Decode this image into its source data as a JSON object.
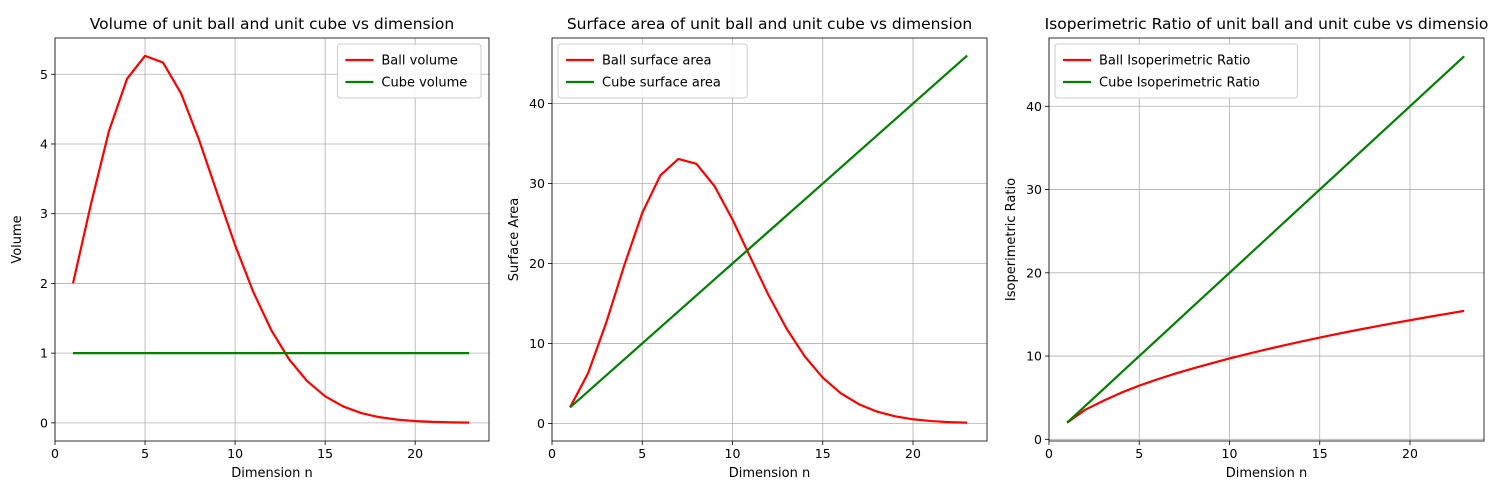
{
  "chart_data": [
    {
      "type": "line",
      "title": "Volume of unit ball and unit cube vs dimension",
      "xlabel": "Dimension n",
      "ylabel": "Volume",
      "xlim": [
        0,
        24.1
      ],
      "ylim": [
        -0.26,
        5.52
      ],
      "xticks": [
        0,
        5,
        10,
        15,
        20
      ],
      "yticks": [
        0,
        1,
        2,
        3,
        4,
        5
      ],
      "grid": true,
      "legend": "top-right",
      "x": [
        1,
        2,
        3,
        4,
        5,
        6,
        7,
        8,
        9,
        10,
        11,
        12,
        13,
        14,
        15,
        16,
        17,
        18,
        19,
        20,
        21,
        22,
        23
      ],
      "series": [
        {
          "name": "Ball volume",
          "color": "#ff0000",
          "values": [
            2.0,
            3.1416,
            4.1888,
            4.9348,
            5.2638,
            5.1677,
            4.7248,
            4.0587,
            3.2985,
            2.5502,
            1.8841,
            1.3353,
            0.9106,
            0.5993,
            0.3814,
            0.2353,
            0.141,
            0.0821,
            0.0466,
            0.0258,
            0.0139,
            0.0073,
            0.0038
          ]
        },
        {
          "name": "Cube volume",
          "color": "#008000",
          "values": [
            1,
            1,
            1,
            1,
            1,
            1,
            1,
            1,
            1,
            1,
            1,
            1,
            1,
            1,
            1,
            1,
            1,
            1,
            1,
            1,
            1,
            1,
            1
          ]
        }
      ]
    },
    {
      "type": "line",
      "title": "Surface area of unit ball and unit cube vs dimension",
      "xlabel": "Dimension n",
      "ylabel": "Surface Area",
      "xlim": [
        0,
        24.1
      ],
      "ylim": [
        -2.2,
        48.2
      ],
      "xticks": [
        0,
        5,
        10,
        15,
        20
      ],
      "yticks": [
        0,
        10,
        20,
        30,
        40
      ],
      "grid": true,
      "legend": "top-left",
      "x": [
        1,
        2,
        3,
        4,
        5,
        6,
        7,
        8,
        9,
        10,
        11,
        12,
        13,
        14,
        15,
        16,
        17,
        18,
        19,
        20,
        21,
        22,
        23
      ],
      "series": [
        {
          "name": "Ball surface area",
          "color": "#ff0000",
          "values": [
            2.0,
            6.2832,
            12.5664,
            19.7392,
            26.3189,
            31.0063,
            33.0734,
            32.4697,
            29.6866,
            25.5016,
            20.7251,
            16.0232,
            11.8382,
            8.3897,
            5.7216,
            3.7653,
            2.3967,
            1.4786,
            0.8856,
            0.5158,
            0.2925,
            0.1617,
            0.0873
          ]
        },
        {
          "name": "Cube surface area",
          "color": "#008000",
          "values": [
            2,
            4,
            6,
            8,
            10,
            12,
            14,
            16,
            18,
            20,
            22,
            24,
            26,
            28,
            30,
            32,
            34,
            36,
            38,
            40,
            42,
            44,
            46
          ]
        }
      ]
    },
    {
      "type": "line",
      "title": "Isoperimetric Ratio of unit ball and unit cube vs dimensio",
      "xlabel": "Dimension n",
      "ylabel": "Isoperimetric Ratio",
      "xlim": [
        0,
        24.1
      ],
      "ylim": [
        -0.2,
        48.2
      ],
      "xticks": [
        0,
        5,
        10,
        15,
        20
      ],
      "yticks": [
        0,
        10,
        20,
        30,
        40
      ],
      "grid": true,
      "legend": "top-left",
      "x": [
        1,
        2,
        3,
        4,
        5,
        6,
        7,
        8,
        9,
        10,
        11,
        12,
        13,
        14,
        15,
        16,
        17,
        18,
        19,
        20,
        21,
        22,
        23
      ],
      "series": [
        {
          "name": "Ball Isoperimetric Ratio",
          "color": "#ff0000",
          "values": [
            2.0,
            3.5449,
            4.6177,
            5.6,
            6.45,
            7.2,
            7.9,
            8.53,
            9.13,
            9.72,
            10.26,
            10.78,
            11.28,
            11.76,
            12.22,
            12.67,
            13.1,
            13.51,
            13.92,
            14.3,
            14.69,
            15.06,
            15.43
          ]
        },
        {
          "name": "Cube Isoperimetric Ratio",
          "color": "#008000",
          "values": [
            2,
            4,
            6,
            8,
            10,
            12,
            14,
            16,
            18,
            20,
            22,
            24,
            26,
            28,
            30,
            32,
            34,
            36,
            38,
            40,
            42,
            44,
            46
          ]
        }
      ]
    }
  ]
}
